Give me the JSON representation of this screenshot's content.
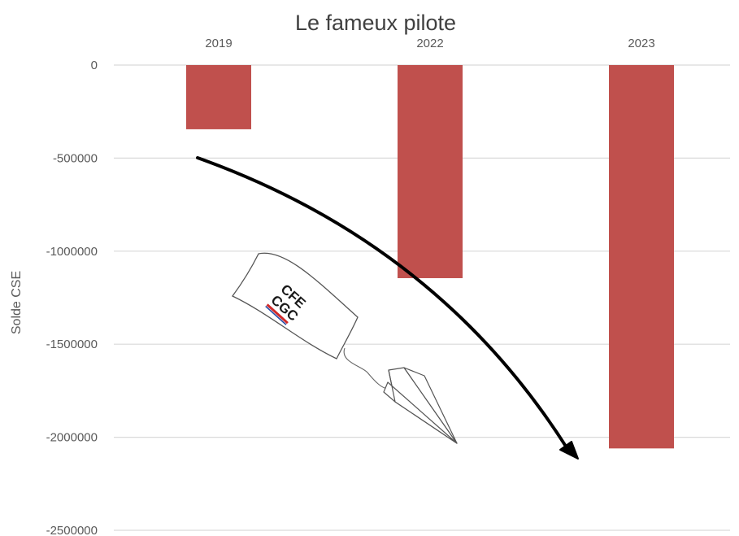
{
  "chart_data": {
    "type": "bar",
    "title": "Le fameux pilote",
    "xlabel": "",
    "ylabel": "Solde CSE",
    "categories": [
      "2019",
      "2022",
      "2023"
    ],
    "values": [
      -345000,
      -1145000,
      -2060000
    ],
    "ylim": [
      -2500000,
      0
    ],
    "yticks": [
      0,
      -500000,
      -1000000,
      -1500000,
      -2000000,
      -2500000
    ],
    "category_axis_position": "top",
    "grid": true,
    "legend": "none",
    "bar_color": "#c0504d",
    "annotations": {
      "trend_arrow": "downward curved black arrow",
      "logo_flag_text": [
        "CFE",
        "CGC"
      ],
      "paper_plane": "paper plane towing a CFE-CGC banner"
    }
  }
}
